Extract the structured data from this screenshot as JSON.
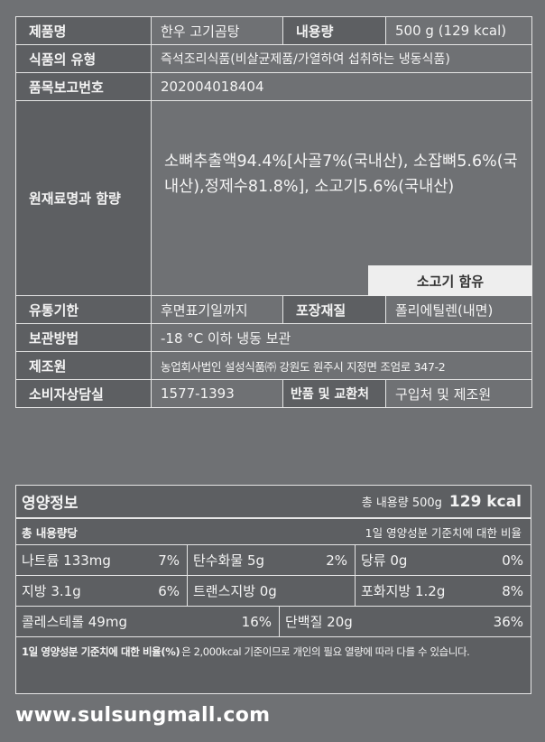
{
  "info": {
    "product_name_label": "제품명",
    "product_name": "한우 고기곰탕",
    "volume_label": "내용량",
    "volume": "500 g (129 kcal)",
    "food_type_label": "식품의 유형",
    "food_type": "즉석조리식품(비살균제품/가열하여 섭취하는 냉동식품)",
    "report_no_label": "품목보고번호",
    "report_no": "202004018404",
    "ingredients_label": "원재료명과 함량",
    "ingredients": "소뼈추출액94.4%[사골7%(국내산), 소잡뼈5.6%(국내산),정제수81.8%], 소고기5.6%(국내산)",
    "beef_badge": "소고기 함유",
    "expiry_label": "유통기한",
    "expiry": "후면표기일까지",
    "packaging_label": "포장재질",
    "packaging": "폴리에틸렌(내면)",
    "storage_label": "보관방법",
    "storage": "-18 °C 이하 냉동 보관",
    "manufacturer_label": "제조원",
    "manufacturer": "농업회사법인 설성식품㈜ 강원도 원주시 지정면 조엄로 347-2",
    "consumer_label": "소비자상담실",
    "consumer": "1577-1393",
    "return_label": "반품 및 교환처",
    "return": "구입처 및 제조원"
  },
  "nutrition": {
    "title": "영양정보",
    "total_label": "총 내용량 500g",
    "total_kcal": "129 kcal",
    "per_label": "총 내용량당",
    "dv_label": "1일 영양성분 기준치에 대한 비율",
    "rows": [
      [
        {
          "name": "나트륨 133mg",
          "pct": "7%"
        },
        {
          "name": "탄수화물 5g",
          "pct": "2%"
        },
        {
          "name": "당류 0g",
          "pct": "0%"
        }
      ],
      [
        {
          "name": "지방 3.1g",
          "pct": "6%"
        },
        {
          "name": "트랜스지방 0g",
          "pct": ""
        },
        {
          "name": "포화지방 1.2g",
          "pct": "8%"
        }
      ],
      [
        {
          "name": "콜레스테롤 49mg",
          "pct": "16%"
        },
        {
          "name": "단백질 20g",
          "pct": "36%"
        }
      ]
    ],
    "footnote_bold": "1일 영양성분 기준치에 대한 비율(%)",
    "footnote": "은 2,000kcal 기준이므로 개인의 필요 열량에 따라 다를 수 있습니다."
  },
  "website": "www.sulsungmall.com"
}
